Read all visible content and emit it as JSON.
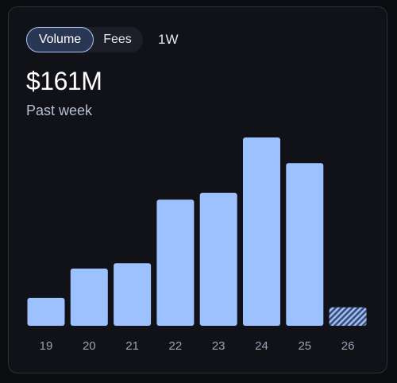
{
  "tabs": {
    "volume_label": "Volume",
    "fees_label": "Fees",
    "active": "Volume"
  },
  "range_label": "1W",
  "summary": {
    "amount": "$161M",
    "period": "Past week"
  },
  "colors": {
    "bar": "#9dc1ff",
    "partial_bar_stripe": "#9dc1ff",
    "partial_bar_gap": "#3b4e72",
    "tick_label": "#9aa3b5"
  },
  "chart_data": {
    "type": "bar",
    "categories": [
      "19",
      "20",
      "21",
      "22",
      "23",
      "24",
      "25",
      "26"
    ],
    "values": [
      7.4,
      15.2,
      16.6,
      33.5,
      35.3,
      50.0,
      43.2,
      4.9
    ],
    "partial": [
      false,
      false,
      false,
      false,
      false,
      false,
      false,
      true
    ],
    "ylim": [
      0,
      50
    ],
    "title": "",
    "xlabel": "",
    "ylabel": "",
    "grid": false
  }
}
